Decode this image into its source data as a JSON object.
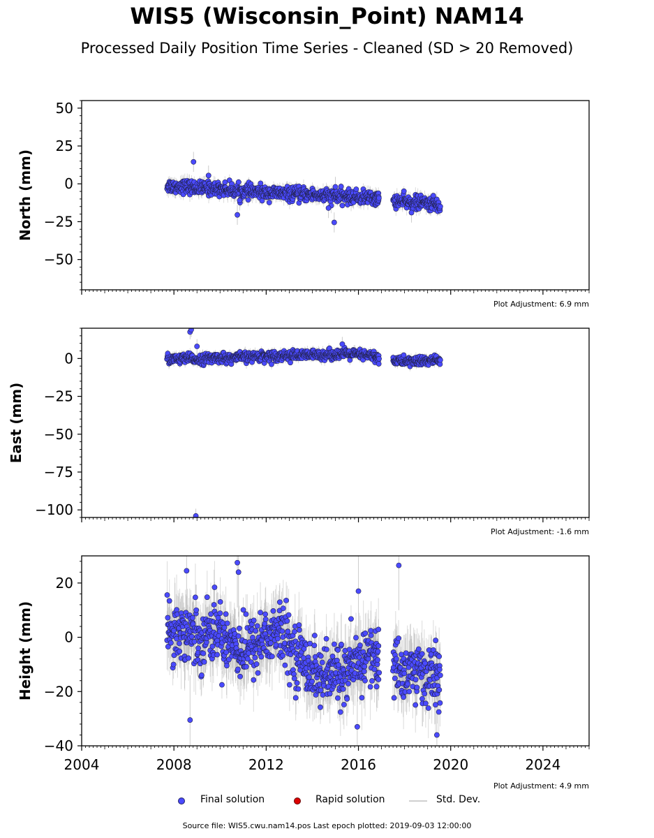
{
  "figure": {
    "title": "WIS5 (Wisconsin_Point) NAM14",
    "subtitle": "Processed Daily Position Time Series - Cleaned (SD > 20 Removed)",
    "source_text": "Source file: WIS5.cwu.nam14.pos  Last epoch plotted: 2019-09-03 12:00:00"
  },
  "legend": {
    "final": "Final solution",
    "rapid": "Rapid solution",
    "std": "Std. Dev."
  },
  "colors": {
    "final_fill": "#4a4aff",
    "final_edge": "#22224a",
    "rapid_fill": "#dd0000",
    "std_line": "#999999"
  },
  "chart_data": [
    {
      "type": "scatter",
      "ylabel": "North (mm)",
      "xlim": [
        2004,
        2026
      ],
      "ylim": [
        -70,
        55
      ],
      "yticks": [
        50,
        25,
        0,
        -25,
        -50
      ],
      "ytick_labels": [
        "50",
        "25",
        "0",
        "−25",
        "−50"
      ],
      "adjustment": "Plot Adjustment: 6.9 mm",
      "series": [
        {
          "points": [
            [
              2007.7,
              -1
            ],
            [
              2008.0,
              -2
            ],
            [
              2008.3,
              -1.5
            ],
            [
              2008.6,
              -2
            ],
            [
              2008.9,
              -2.5
            ],
            [
              2009.2,
              -3
            ],
            [
              2009.5,
              -3
            ],
            [
              2009.8,
              -3.2
            ],
            [
              2010.1,
              -3.5
            ],
            [
              2010.4,
              -4
            ],
            [
              2010.7,
              -4.5
            ],
            [
              2011.0,
              -5
            ],
            [
              2011.3,
              -5
            ],
            [
              2011.6,
              -5.5
            ],
            [
              2011.9,
              -6
            ],
            [
              2012.2,
              -6
            ],
            [
              2012.5,
              -6.3
            ],
            [
              2012.8,
              -6.5
            ],
            [
              2013.1,
              -6.8
            ],
            [
              2013.4,
              -7
            ],
            [
              2013.7,
              -7
            ],
            [
              2014.0,
              -7.3
            ],
            [
              2014.3,
              -7.5
            ],
            [
              2014.6,
              -8
            ],
            [
              2014.9,
              -8.2
            ],
            [
              2015.2,
              -8.5
            ],
            [
              2015.5,
              -8.5
            ],
            [
              2015.8,
              -8.8
            ],
            [
              2016.1,
              -9
            ],
            [
              2016.4,
              -9
            ],
            [
              2016.7,
              -9.5
            ],
            [
              2016.9,
              -10
            ],
            [
              2017.5,
              -11
            ],
            [
              2017.8,
              -11.5
            ],
            [
              2018.1,
              -12
            ],
            [
              2018.4,
              -12.3
            ],
            [
              2018.7,
              -12.5
            ],
            [
              2019.0,
              -13
            ],
            [
              2019.3,
              -13.5
            ],
            [
              2019.55,
              -15
            ]
          ],
          "outliers": [
            [
              2008.85,
              14.5
            ],
            [
              2009.5,
              5.5
            ],
            [
              2010.75,
              -20.5
            ],
            [
              2010.85,
              -11
            ],
            [
              2014.7,
              -16
            ],
            [
              2014.95,
              -25.5
            ],
            [
              2015.0,
              -2
            ],
            [
              2018.3,
              -19
            ]
          ],
          "noise": 2.2
        }
      ]
    },
    {
      "type": "scatter",
      "ylabel": "East (mm)",
      "xlim": [
        2004,
        2026
      ],
      "ylim": [
        -105,
        20
      ],
      "yticks": [
        0,
        -25,
        -50,
        -75,
        -100
      ],
      "ytick_labels": [
        "0",
        "−25",
        "−50",
        "−75",
        "−100"
      ],
      "adjustment": "Plot Adjustment: -1.6 mm",
      "series": [
        {
          "points": [
            [
              2007.7,
              0
            ],
            [
              2008.0,
              -0.5
            ],
            [
              2008.3,
              -0.5
            ],
            [
              2008.6,
              0
            ],
            [
              2008.9,
              -0.5
            ],
            [
              2009.2,
              -0.5
            ],
            [
              2009.5,
              0
            ],
            [
              2009.8,
              0.5
            ],
            [
              2010.1,
              0.5
            ],
            [
              2010.4,
              0
            ],
            [
              2010.7,
              0.5
            ],
            [
              2011.0,
              1
            ],
            [
              2011.3,
              1
            ],
            [
              2011.6,
              1.5
            ],
            [
              2011.9,
              1.5
            ],
            [
              2012.2,
              1.5
            ],
            [
              2012.5,
              1.8
            ],
            [
              2012.8,
              2
            ],
            [
              2013.1,
              2
            ],
            [
              2013.4,
              2
            ],
            [
              2013.7,
              2.2
            ],
            [
              2014.0,
              2.2
            ],
            [
              2014.3,
              2.5
            ],
            [
              2014.6,
              2.5
            ],
            [
              2014.9,
              2.8
            ],
            [
              2015.2,
              2.8
            ],
            [
              2015.5,
              3
            ],
            [
              2015.8,
              2.8
            ],
            [
              2016.1,
              2.5
            ],
            [
              2016.4,
              2
            ],
            [
              2016.7,
              1.5
            ],
            [
              2016.9,
              0
            ],
            [
              2017.5,
              -1.5
            ],
            [
              2017.8,
              -1.5
            ],
            [
              2018.1,
              -2
            ],
            [
              2018.4,
              -1.8
            ],
            [
              2018.7,
              -1.8
            ],
            [
              2019.0,
              -1.5
            ],
            [
              2019.3,
              -1.2
            ],
            [
              2019.55,
              -1
            ]
          ],
          "outliers": [
            [
              2008.7,
              17.5
            ],
            [
              2008.75,
              19
            ],
            [
              2009.0,
              8
            ],
            [
              2008.95,
              -104
            ],
            [
              2015.3,
              9.5
            ]
          ],
          "noise": 1.6
        }
      ]
    },
    {
      "type": "scatter",
      "ylabel": "Height (mm)",
      "xlim": [
        2004,
        2026
      ],
      "ylim": [
        -40,
        30
      ],
      "yticks": [
        20,
        0,
        -20,
        -40
      ],
      "ytick_labels": [
        "20",
        "0",
        "−20",
        "−40"
      ],
      "xticks": [
        2004,
        2008,
        2012,
        2016,
        2020,
        2024
      ],
      "xtick_labels": [
        "2004",
        "2008",
        "2012",
        "2016",
        "2020",
        "2024"
      ],
      "adjustment": "Plot Adjustment: 4.9 mm",
      "series": [
        {
          "points": [
            [
              2007.7,
              4
            ],
            [
              2008.0,
              3
            ],
            [
              2008.3,
              2
            ],
            [
              2008.6,
              2
            ],
            [
              2008.9,
              1
            ],
            [
              2009.2,
              0
            ],
            [
              2009.5,
              2
            ],
            [
              2009.8,
              3
            ],
            [
              2010.1,
              1
            ],
            [
              2010.4,
              -1
            ],
            [
              2010.7,
              -3
            ],
            [
              2011.0,
              -5
            ],
            [
              2011.3,
              -4
            ],
            [
              2011.6,
              -2
            ],
            [
              2011.9,
              0
            ],
            [
              2012.2,
              1
            ],
            [
              2012.5,
              2
            ],
            [
              2012.8,
              0
            ],
            [
              2013.1,
              -4
            ],
            [
              2013.4,
              -7
            ],
            [
              2013.7,
              -9
            ],
            [
              2014.0,
              -12
            ],
            [
              2014.3,
              -14
            ],
            [
              2014.6,
              -15
            ],
            [
              2014.9,
              -14
            ],
            [
              2015.2,
              -12
            ],
            [
              2015.5,
              -14
            ],
            [
              2015.8,
              -12
            ],
            [
              2016.1,
              -9
            ],
            [
              2016.4,
              -6
            ],
            [
              2016.7,
              -7
            ],
            [
              2016.9,
              -10
            ],
            [
              2017.5,
              -10
            ],
            [
              2017.8,
              -12
            ],
            [
              2018.1,
              -13
            ],
            [
              2018.4,
              -12
            ],
            [
              2018.7,
              -13
            ],
            [
              2019.0,
              -14
            ],
            [
              2019.3,
              -15
            ],
            [
              2019.55,
              -14
            ]
          ],
          "outliers": [
            [
              2008.55,
              24.5
            ],
            [
              2010.75,
              27.5
            ],
            [
              2010.8,
              24
            ],
            [
              2017.75,
              26.5
            ],
            [
              2008.7,
              -30.5
            ],
            [
              2016.0,
              17
            ],
            [
              2019.4,
              -36
            ],
            [
              2015.95,
              -33
            ]
          ],
          "noise": 5.5
        }
      ]
    }
  ]
}
